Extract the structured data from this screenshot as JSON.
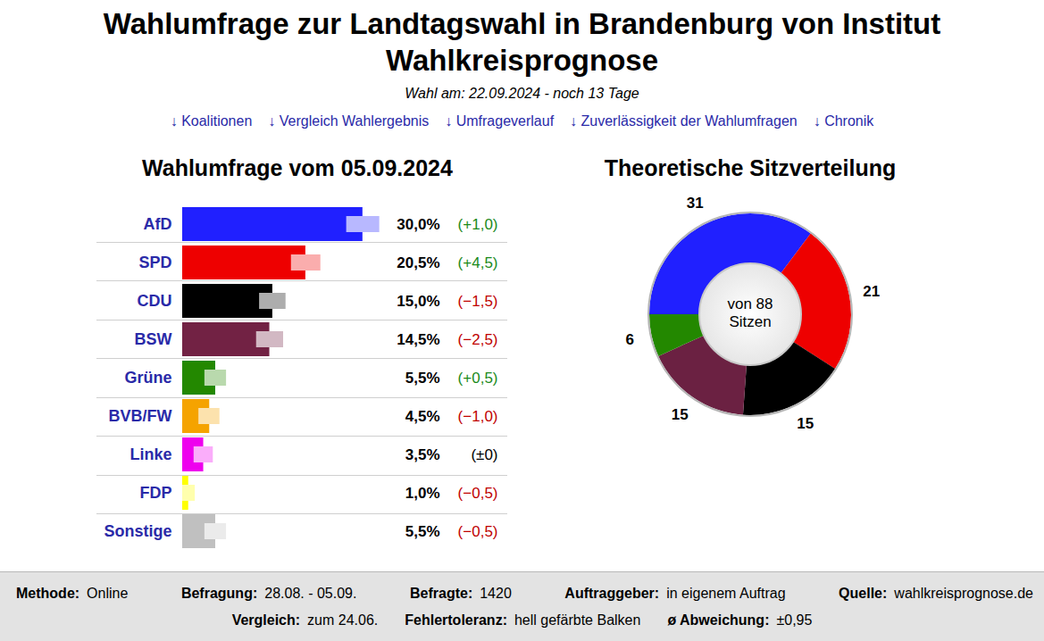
{
  "header": {
    "title": "Wahlumfrage zur Landtagswahl in Brandenburg von Institut Wahlkreisprognose",
    "subtitle": "Wahl am: 22.09.2024 - noch 13 Tage",
    "links": [
      "↓ Koalitionen",
      "↓ Vergleich Wahlergebnis",
      "↓ Umfrageverlauf",
      "↓ Zuverlässigkeit der Wahlumfragen",
      "↓ Chronik"
    ]
  },
  "chart_data": [
    {
      "type": "bar",
      "title": "Wahlumfrage vom 05.09.2024",
      "orientation": "horizontal",
      "categories": [
        "AfD",
        "SPD",
        "CDU",
        "BSW",
        "Grüne",
        "BVB/FW",
        "Linke",
        "FDP",
        "Sonstige"
      ],
      "values": [
        30.0,
        20.5,
        15.0,
        14.5,
        5.5,
        4.5,
        3.5,
        1.0,
        5.5
      ],
      "value_labels": [
        "30,0%",
        "20,5%",
        "15,0%",
        "14,5%",
        "5,5%",
        "4,5%",
        "3,5%",
        "1,0%",
        "5,5%"
      ],
      "changes": [
        1.0,
        4.5,
        -1.5,
        -2.5,
        0.5,
        -1.0,
        0,
        -0.5,
        -0.5
      ],
      "change_labels": [
        "(+1,0)",
        "(+4,5)",
        "(−1,5)",
        "(−2,5)",
        "(+0,5)",
        "(−1,0)",
        "(±0)",
        "(−0,5)",
        "(−0,5)"
      ],
      "tolerance_low": [
        27.3,
        18.1,
        12.8,
        12.3,
        3.7,
        2.7,
        1.9,
        0.0,
        3.7
      ],
      "tolerance_high": [
        32.8,
        23.0,
        17.2,
        16.8,
        7.3,
        6.2,
        5.1,
        2.1,
        7.3
      ],
      "colors": [
        "#2020ff",
        "#ee0000",
        "#000000",
        "#722244",
        "#238800",
        "#f5a300",
        "#ee00ee",
        "#ffff00",
        "#c0c0c0"
      ],
      "xlim": [
        0,
        33
      ],
      "tick_labels": false,
      "data_labels": true
    },
    {
      "type": "pie",
      "title": "Theoretische Sitzverteilung",
      "categories": [
        "AfD",
        "SPD",
        "CDU",
        "BSW",
        "Grüne"
      ],
      "values": [
        31,
        21,
        15,
        15,
        6
      ],
      "colors": [
        "#2020ff",
        "#ee0000",
        "#000000",
        "#6b2142",
        "#238800"
      ],
      "center_label": [
        "von 88",
        "Sitzen"
      ],
      "data_labels": true
    }
  ],
  "footer": {
    "rows": [
      [
        {
          "label": "Methode:",
          "value": "Online"
        },
        {
          "label": "Befragung:",
          "value": "28.08. - 05.09."
        },
        {
          "label": "Befragte:",
          "value": "1420"
        },
        {
          "label": "Auftraggeber:",
          "value": "in eigenem Auftrag"
        },
        {
          "label": "Quelle:",
          "value": "wahlkreisprognose.de"
        }
      ],
      [
        {
          "label": "Vergleich:",
          "value": "zum 24.06."
        },
        {
          "label": "Fehlertoleranz:",
          "value": "hell gefärbte Balken"
        },
        {
          "label": "ø Abweichung:",
          "value": "±0,95"
        }
      ]
    ]
  }
}
